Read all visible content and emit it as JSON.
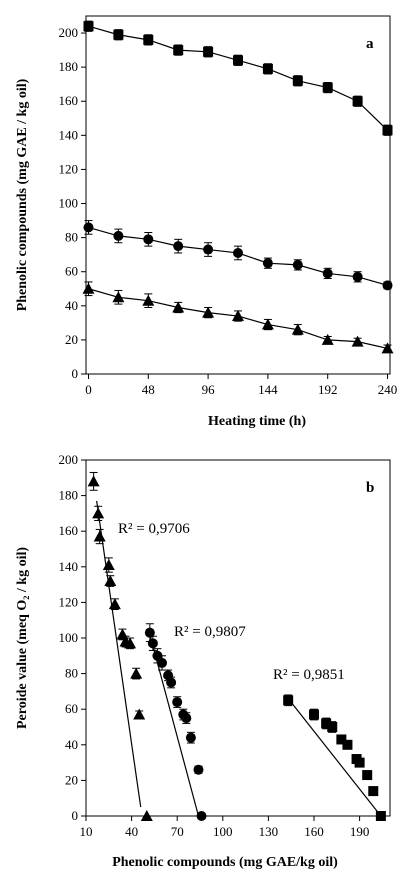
{
  "chart_data": [
    {
      "panel": "a",
      "type": "line",
      "xlabel": "Heating time (h)",
      "ylabel": "Phenolic compounds (mg GAE / kg oil)",
      "xlim": [
        0,
        240
      ],
      "ylim": [
        0,
        210
      ],
      "xticks": [
        0,
        48,
        96,
        144,
        192,
        240
      ],
      "yticks": [
        0,
        20,
        40,
        60,
        80,
        100,
        120,
        140,
        160,
        180,
        200
      ],
      "grid": false,
      "series": [
        {
          "marker": "square",
          "x": [
            0,
            24,
            48,
            72,
            96,
            120,
            144,
            168,
            192,
            216,
            240
          ],
          "y": [
            204,
            199,
            196,
            190,
            189,
            184,
            179,
            172,
            168,
            160,
            143
          ],
          "err": [
            3,
            3,
            3,
            3,
            3,
            3,
            3,
            3,
            3,
            3,
            3
          ]
        },
        {
          "marker": "circle",
          "x": [
            0,
            24,
            48,
            72,
            96,
            120,
            144,
            168,
            192,
            216,
            240
          ],
          "y": [
            86,
            81,
            79,
            75,
            73,
            71,
            65,
            64,
            59,
            57,
            52
          ],
          "err": [
            4,
            4,
            4,
            4,
            4,
            4,
            3,
            3,
            3,
            3,
            2
          ]
        },
        {
          "marker": "triangle",
          "x": [
            0,
            24,
            48,
            72,
            96,
            120,
            144,
            168,
            192,
            216,
            240
          ],
          "y": [
            50,
            45,
            43,
            39,
            36,
            34,
            29,
            26,
            20,
            19,
            15
          ],
          "err": [
            4,
            4,
            4,
            3,
            3,
            3,
            3,
            3,
            2,
            2,
            2
          ]
        }
      ]
    },
    {
      "panel": "b",
      "type": "scatter",
      "xlabel": "Phenolic compounds (mg GAE/kg oil)",
      "ylabel": "Peroide value (meq O₂ / kg oil)",
      "xlim": [
        10,
        210
      ],
      "ylim": [
        0,
        200
      ],
      "xticks": [
        10,
        40,
        70,
        100,
        130,
        160,
        190
      ],
      "yticks": [
        0,
        20,
        40,
        60,
        80,
        100,
        120,
        140,
        160,
        180,
        200
      ],
      "grid": false,
      "series": [
        {
          "marker": "triangle",
          "r2": "R² = 0,9706",
          "x": [
            15,
            18,
            19,
            25,
            26,
            29,
            34,
            36,
            39,
            43,
            45,
            50
          ],
          "y": [
            188,
            170,
            157,
            141,
            132,
            119,
            102,
            98,
            97,
            80,
            57,
            0
          ],
          "err": [
            5,
            4,
            4,
            4,
            3,
            3,
            3,
            3,
            3,
            3,
            2,
            0
          ],
          "fit": [
            [
              17,
              177
            ],
            [
              46,
              5
            ]
          ]
        },
        {
          "marker": "circle",
          "r2": "R² = 0,9807",
          "x": [
            52,
            54,
            57,
            60,
            64,
            66,
            70,
            74,
            76,
            79,
            84,
            86
          ],
          "y": [
            103,
            97,
            90,
            86,
            79,
            75,
            64,
            57,
            55,
            44,
            26,
            0
          ],
          "err": [
            5,
            4,
            4,
            4,
            3,
            3,
            3,
            3,
            3,
            3,
            2,
            0
          ],
          "fit": [
            [
              52,
              102
            ],
            [
              84,
              0
            ]
          ]
        },
        {
          "marker": "square",
          "r2": "R² = 0,9851",
          "x": [
            143,
            160,
            168,
            172,
            178,
            182,
            188,
            190,
            195,
            199,
            204
          ],
          "y": [
            65,
            57,
            52,
            50,
            43,
            40,
            32,
            30,
            23,
            14,
            0
          ],
          "err": [
            3,
            3,
            3,
            3,
            2,
            2,
            2,
            2,
            2,
            2,
            0
          ],
          "fit": [
            [
              143,
              66
            ],
            [
              204,
              0
            ]
          ]
        }
      ]
    }
  ],
  "panels": {
    "a": {
      "letter": "a"
    },
    "b": {
      "letter": "b"
    }
  },
  "colors": {
    "ink": "#000000",
    "background": "#ffffff"
  }
}
